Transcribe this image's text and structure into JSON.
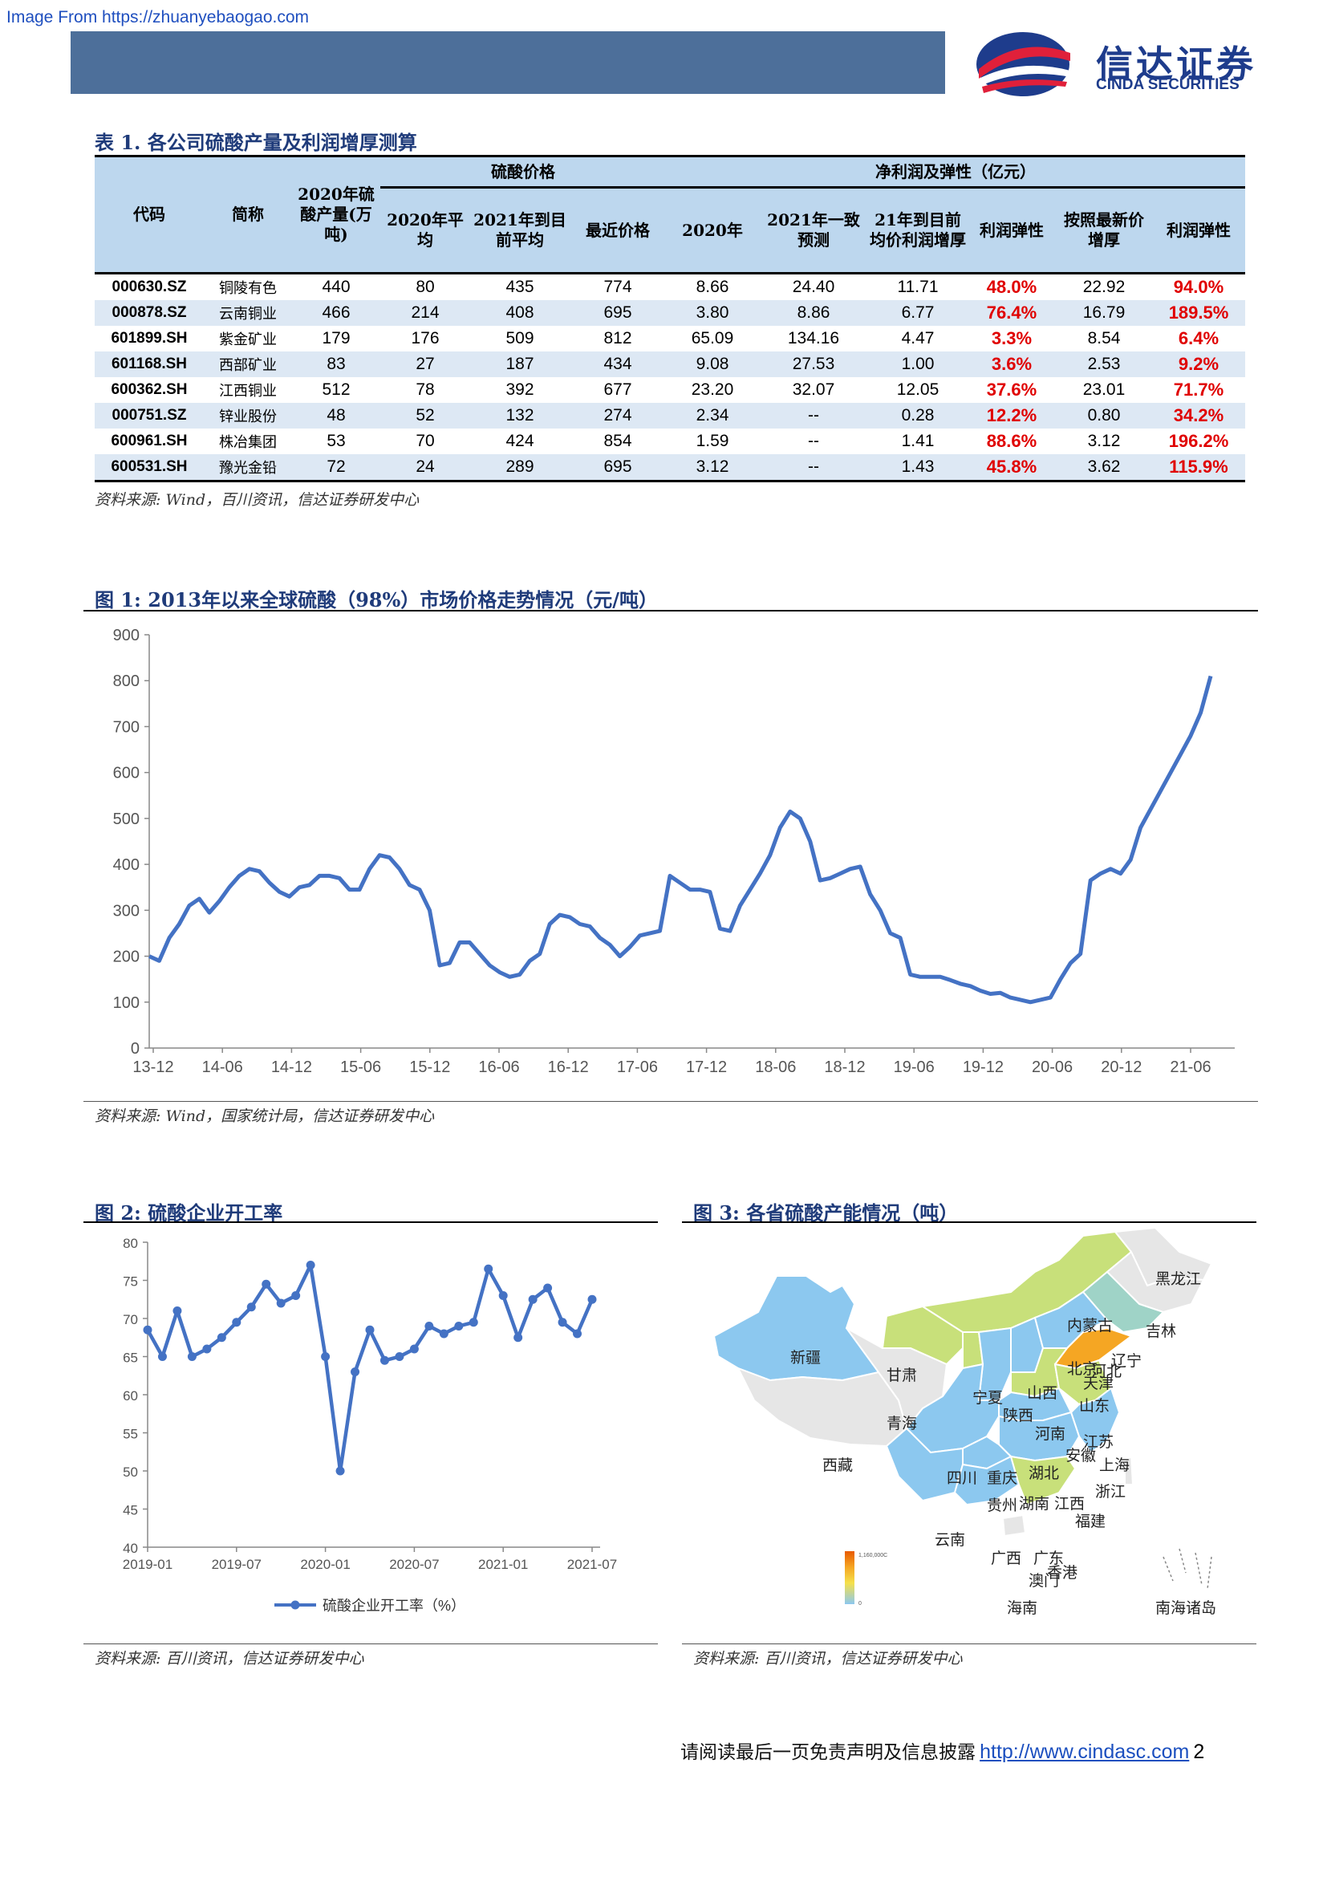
{
  "watermark": "Image From https://zhuanyebaogao.com",
  "logo": {
    "cn": "信达证券",
    "en": "CINDA SECURITIES"
  },
  "table1": {
    "title": "表 1. 各公司硫酸产量及利润增厚测算",
    "group_price": "硫酸价格",
    "group_profit": "净利润及弹性（亿元）",
    "headers": [
      "代码",
      "简称",
      "2020年硫酸产量(万吨)",
      "2020年平均",
      "2021年到目前平均",
      "最近价格",
      "2020年",
      "2021年一致预测",
      "21年到目前均价利润增厚",
      "利润弹性",
      "按照最新价增厚",
      "利润弹性"
    ],
    "rows": [
      [
        "000630.SZ",
        "铜陵有色",
        "440",
        "80",
        "435",
        "774",
        "8.66",
        "24.40",
        "11.71",
        "48.0%",
        "22.92",
        "94.0%"
      ],
      [
        "000878.SZ",
        "云南铜业",
        "466",
        "214",
        "408",
        "695",
        "3.80",
        "8.86",
        "6.77",
        "76.4%",
        "16.79",
        "189.5%"
      ],
      [
        "601899.SH",
        "紫金矿业",
        "179",
        "176",
        "509",
        "812",
        "65.09",
        "134.16",
        "4.47",
        "3.3%",
        "8.54",
        "6.4%"
      ],
      [
        "601168.SH",
        "西部矿业",
        "83",
        "27",
        "187",
        "434",
        "9.08",
        "27.53",
        "1.00",
        "3.6%",
        "2.53",
        "9.2%"
      ],
      [
        "600362.SH",
        "江西铜业",
        "512",
        "78",
        "392",
        "677",
        "23.20",
        "32.07",
        "12.05",
        "37.6%",
        "23.01",
        "71.7%"
      ],
      [
        "000751.SZ",
        "锌业股份",
        "48",
        "52",
        "132",
        "274",
        "2.34",
        "--",
        "0.28",
        "12.2%",
        "0.80",
        "34.2%"
      ],
      [
        "600961.SH",
        "株冶集团",
        "53",
        "70",
        "424",
        "854",
        "1.59",
        "--",
        "1.41",
        "88.6%",
        "3.12",
        "196.2%"
      ],
      [
        "600531.SH",
        "豫光金铅",
        "72",
        "24",
        "289",
        "695",
        "3.12",
        "--",
        "1.43",
        "45.8%",
        "3.62",
        "115.9%"
      ]
    ],
    "source": "资料来源: Wind，百川资讯，信达证券研发中心"
  },
  "fig1": {
    "title": "图 1:  2013年以来全球硫酸（98%）市场价格走势情况（元/吨）",
    "source": "资料来源: Wind，国家统计局，信达证券研发中心"
  },
  "fig2": {
    "title": "图 2:  硫酸企业开工率",
    "source": "资料来源: 百川资讯，信达证券研发中心"
  },
  "fig3": {
    "title": "图 3:  各省硫酸产能情况（吨）",
    "source": "资料来源: 百川资讯，信达证券研发中心",
    "provinces": [
      {
        "name": "黑龙江",
        "color": "#e6e6e6"
      },
      {
        "name": "吉林",
        "color": "#e6e6e6"
      },
      {
        "name": "辽宁",
        "color": "#9fd3c7"
      },
      {
        "name": "内蒙古",
        "color": "#c8e07a"
      },
      {
        "name": "新疆",
        "color": "#8cc8ef"
      },
      {
        "name": "甘肃",
        "color": "#c8e07a"
      },
      {
        "name": "北京",
        "color": "#8cc8ef"
      },
      {
        "name": "天津",
        "color": "#8cc8ef"
      },
      {
        "name": "河北",
        "color": "#8cc8ef"
      },
      {
        "name": "山西",
        "color": "#8cc8ef"
      },
      {
        "name": "宁夏",
        "color": "#c8e07a"
      },
      {
        "name": "山东",
        "color": "#f5a623"
      },
      {
        "name": "青海",
        "color": "#e6e6e6"
      },
      {
        "name": "陕西",
        "color": "#8cc8ef"
      },
      {
        "name": "河南",
        "color": "#c8e07a"
      },
      {
        "name": "江苏",
        "color": "#c8e07a"
      },
      {
        "name": "西藏",
        "color": "#e6e6e6"
      },
      {
        "name": "安徽",
        "color": "#c8e07a"
      },
      {
        "name": "上海",
        "color": "#8cc8ef"
      },
      {
        "name": "四川",
        "color": "#8cc8ef"
      },
      {
        "name": "重庆",
        "color": "#8cc8ef"
      },
      {
        "name": "湖北",
        "color": "#8cc8ef"
      },
      {
        "name": "浙江",
        "color": "#8cc8ef"
      },
      {
        "name": "贵州",
        "color": "#8cc8ef"
      },
      {
        "name": "湖南",
        "color": "#8cc8ef"
      },
      {
        "name": "江西",
        "color": "#8cc8ef"
      },
      {
        "name": "福建",
        "color": "#8cc8ef"
      },
      {
        "name": "云南",
        "color": "#8cc8ef"
      },
      {
        "name": "广西",
        "color": "#8cc8ef"
      },
      {
        "name": "广东",
        "color": "#c8e07a"
      },
      {
        "name": "澳门",
        "color": "#c8e07a"
      },
      {
        "name": "香港",
        "color": "#c8e07a"
      },
      {
        "name": "海南",
        "color": "#e6e6e6"
      },
      {
        "name": "南海诸岛",
        "color": "#ffffff"
      }
    ],
    "legend_max_label": "1,160,000C",
    "legend_min_label": "0"
  },
  "footer": {
    "text": "请阅读最后一页免责声明及信息披露",
    "link": "http://www.cindasc.com",
    "page": "2"
  },
  "colors": {
    "line": "#4472c4",
    "header_fill": "#bdd7ee",
    "red": "#e00000",
    "bar": "#4d6f9a"
  },
  "chart_data": [
    {
      "type": "line",
      "title": "",
      "xlabel": "",
      "ylabel": "",
      "ylim": [
        0,
        900
      ],
      "yticks": [
        0,
        100,
        200,
        300,
        400,
        500,
        600,
        700,
        800,
        900
      ],
      "xtick_labels": [
        "13-12",
        "14-06",
        "14-12",
        "15-06",
        "15-12",
        "16-06",
        "16-12",
        "17-06",
        "17-12",
        "18-06",
        "18-12",
        "19-06",
        "19-12",
        "20-06",
        "20-12",
        "21-06"
      ],
      "x_start": "2013-12",
      "x_end": "2021-08",
      "grid": false,
      "series": [
        {
          "values": [
            200,
            190,
            240,
            270,
            310,
            325,
            295,
            320,
            350,
            375,
            390,
            385,
            360,
            340,
            330,
            350,
            355,
            375,
            375,
            370,
            345,
            345,
            390,
            420,
            415,
            390,
            355,
            345,
            300,
            180,
            185,
            230,
            230,
            205,
            180,
            165,
            155,
            160,
            190,
            205,
            270,
            290,
            285,
            270,
            265,
            240,
            225,
            200,
            220,
            245,
            250,
            255,
            375,
            360,
            345,
            345,
            340,
            260,
            255,
            310,
            345,
            380,
            420,
            480,
            515,
            500,
            450,
            365,
            370,
            380,
            390,
            395,
            335,
            300,
            250,
            240,
            160,
            155,
            155,
            155,
            148,
            140,
            135,
            125,
            118,
            120,
            110,
            105,
            100,
            105,
            110,
            150,
            185,
            205,
            365,
            380,
            390,
            380,
            410,
            480,
            520,
            560,
            600,
            640,
            680,
            730,
            810
          ]
        }
      ]
    },
    {
      "type": "line",
      "title": "",
      "xlabel": "",
      "ylabel": "",
      "ylim": [
        40,
        80
      ],
      "yticks": [
        40,
        45,
        50,
        55,
        60,
        65,
        70,
        75,
        80
      ],
      "xtick_labels": [
        "2019-01",
        "2019-07",
        "2020-01",
        "2020-07",
        "2021-01",
        "2021-07"
      ],
      "x_start": "2019-01",
      "x_end": "2021-07",
      "legend": "bottom",
      "series": [
        {
          "name": "硫酸企业开工率（%）",
          "values": [
            68.5,
            65,
            71,
            65,
            66,
            67.5,
            69.5,
            71.5,
            74.5,
            72,
            73,
            77,
            65,
            50,
            63,
            68.5,
            64.5,
            65,
            66,
            69,
            68,
            69,
            69.5,
            76.5,
            73,
            67.5,
            72.5,
            74,
            69.5,
            68,
            72.5
          ]
        }
      ]
    }
  ]
}
